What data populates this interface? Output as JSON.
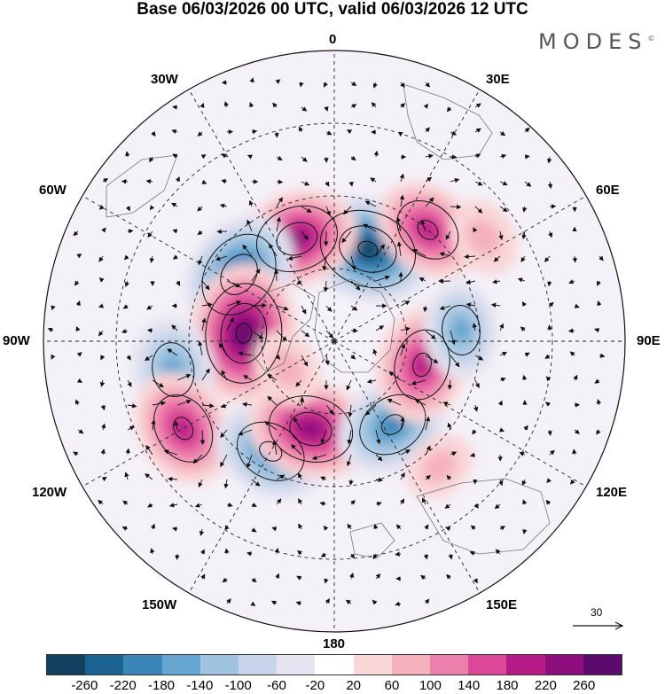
{
  "title": "Base 06/03/2026 00 UTC, valid 06/03/2026 12 UTC",
  "brand": {
    "name": "MODES",
    "mark": "©"
  },
  "longitude_labels": {
    "lon_0": "0",
    "lon_30e": "30E",
    "lon_60e": "60E",
    "lon_90e": "90E",
    "lon_120e": "120E",
    "lon_150e": "150E",
    "lon_180": "180",
    "lon_150w": "150W",
    "lon_120w": "120W",
    "lon_90w": "90W",
    "lon_60w": "60W",
    "lon_30w": "30W"
  },
  "reference_vector": {
    "label": "30"
  },
  "colorbar": {
    "colors": [
      "#14405f",
      "#1d6391",
      "#3a86b8",
      "#67a6d0",
      "#9fc3e0",
      "#c8d5ea",
      "#e6e4f1",
      "#ffffff",
      "#f9d6d7",
      "#f4b1be",
      "#ed7fac",
      "#dc4798",
      "#b71c86",
      "#8c0f7d",
      "#5b0a6e"
    ],
    "ticks": [
      "-260",
      "-220",
      "-180",
      "-140",
      "-100",
      "-60",
      "-20",
      "20",
      "60",
      "100",
      "140",
      "180",
      "220",
      "260"
    ]
  },
  "field": {
    "anomalies": [
      {
        "lon": 20,
        "lat": -63,
        "value": -260
      },
      {
        "lon": 340,
        "lat": -60,
        "value": 220
      },
      {
        "lon": 305,
        "lat": -58,
        "value": -240
      },
      {
        "lon": 40,
        "lat": -50,
        "value": 180
      },
      {
        "lon": 275,
        "lat": -65,
        "value": 270
      },
      {
        "lon": 260,
        "lat": -45,
        "value": -170
      },
      {
        "lon": 240,
        "lat": -42,
        "value": 200
      },
      {
        "lon": 210,
        "lat": -55,
        "value": -200
      },
      {
        "lon": 195,
        "lat": -65,
        "value": 230
      },
      {
        "lon": 145,
        "lat": -62,
        "value": -200
      },
      {
        "lon": 105,
        "lat": -65,
        "value": 200
      },
      {
        "lon": 85,
        "lat": -55,
        "value": -140
      },
      {
        "lon": 55,
        "lat": -40,
        "value": 80
      },
      {
        "lon": 240,
        "lat": -75,
        "value": 80
      },
      {
        "lon": 140,
        "lat": -45,
        "value": 60
      }
    ]
  }
}
